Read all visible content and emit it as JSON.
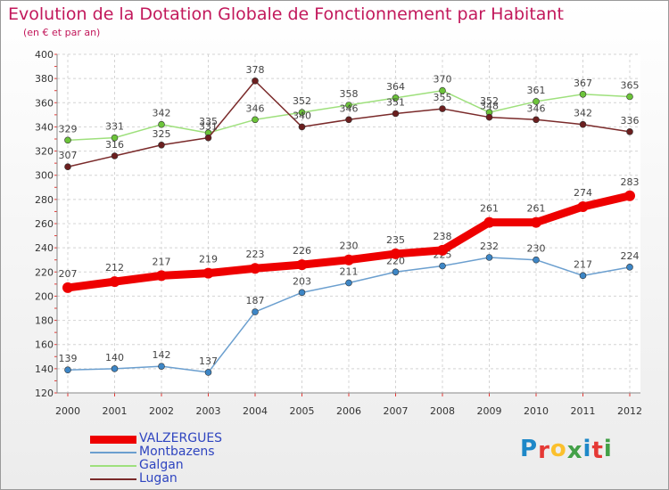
{
  "header": {
    "title": "Evolution de la Dotation Globale de Fonctionnement par Habitant",
    "subtitle": "(en € et par an)"
  },
  "logo": {
    "text": "Proxiti",
    "letters": [
      {
        "ch": "P",
        "color": "#1e88c8"
      },
      {
        "ch": "r",
        "color": "#e53935"
      },
      {
        "ch": "o",
        "color": "#fbc02d"
      },
      {
        "ch": "x",
        "color": "#43a047"
      },
      {
        "ch": "i",
        "color": "#1e88c8"
      },
      {
        "ch": "t",
        "color": "#e53935"
      },
      {
        "ch": "i",
        "color": "#43a047"
      }
    ]
  },
  "chart_data": {
    "type": "line",
    "title": "Evolution de la Dotation Globale de Fonctionnement par Habitant",
    "subtitle": "(en € et par an)",
    "xlabel": "",
    "ylabel": "",
    "ylim": [
      120,
      400
    ],
    "yticks": [
      120,
      140,
      160,
      180,
      200,
      220,
      240,
      260,
      280,
      300,
      320,
      340,
      360,
      380,
      400
    ],
    "categories": [
      "2000",
      "2001",
      "2002",
      "2003",
      "2004",
      "2005",
      "2006",
      "2007",
      "2008",
      "2009",
      "2010",
      "2011",
      "2012"
    ],
    "grid": true,
    "legend_position": "bottom-left",
    "series": [
      {
        "name": "VALZERGUES",
        "color": "#ee0000",
        "marker": "#ee0000",
        "values": [
          207,
          212,
          217,
          219,
          223,
          226,
          230,
          235,
          238,
          261,
          261,
          274,
          283
        ]
      },
      {
        "name": "Montbazens",
        "color": "#6b9fcf",
        "marker": "#3d86c6",
        "values": [
          139,
          140,
          142,
          137,
          187,
          203,
          211,
          220,
          225,
          232,
          230,
          217,
          224
        ]
      },
      {
        "name": "Galgan",
        "color": "#9ee07c",
        "marker": "#6cc43a",
        "values": [
          329,
          331,
          342,
          335,
          346,
          352,
          358,
          364,
          370,
          352,
          361,
          367,
          365
        ]
      },
      {
        "name": "Lugan",
        "color": "#7a2a2a",
        "marker": "#6b1f1f",
        "values": [
          307,
          316,
          325,
          331,
          378,
          340,
          346,
          351,
          355,
          348,
          346,
          342,
          336
        ]
      }
    ]
  }
}
